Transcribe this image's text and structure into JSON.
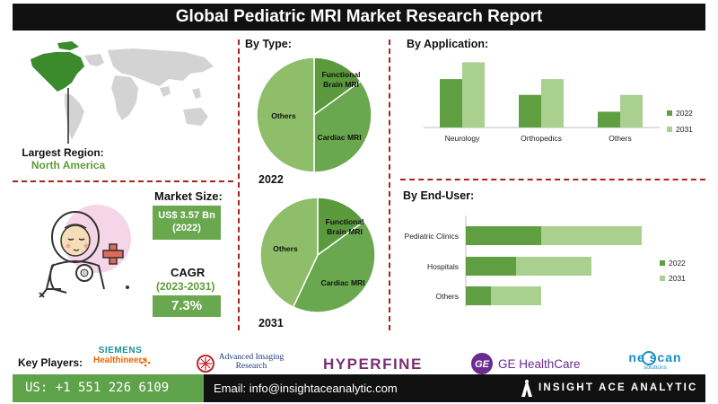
{
  "title": "Global Pediatric MRI Market Research Report",
  "region": {
    "label": "Largest Region:",
    "value": "North America"
  },
  "market_size": {
    "label": "Market Size:",
    "value": "US$ 3.57 Bn",
    "year": "(2022)"
  },
  "cagr": {
    "label": "CAGR",
    "period": "(2023-2031)",
    "value": "7.3%"
  },
  "by_type": {
    "title": "By Type:",
    "year_2022": "2022",
    "year_2031": "2031"
  },
  "by_application": {
    "title": "By Application:"
  },
  "by_end_user": {
    "title": "By End-User:"
  },
  "colors": {
    "dark_green": "#5f9f41",
    "light_green": "#a9d08e",
    "pie_light": "#8fbe6a",
    "pie_mid": "#6aa84f",
    "pie_dark": "#5b9a3c",
    "accent_red": "#a8221e"
  },
  "chart_data": [
    {
      "type": "pie",
      "title": "2022",
      "labels": [
        "Functional Brain MRI",
        "Cardiac MRI",
        "Others"
      ],
      "values": [
        15,
        35,
        50
      ]
    },
    {
      "type": "pie",
      "title": "2031",
      "labels": [
        "Functional Brain MRI",
        "Cardiac MRI",
        "Others"
      ],
      "values": [
        15,
        42,
        43
      ]
    },
    {
      "type": "bar",
      "categories": [
        "Neurology",
        "Orthopedics",
        "Others"
      ],
      "series": [
        {
          "name": "2022",
          "values": [
            46,
            31,
            15
          ]
        },
        {
          "name": "2031",
          "values": [
            62,
            46,
            31
          ]
        }
      ],
      "ylim": [
        0,
        70
      ],
      "legend": "right"
    },
    {
      "type": "bar",
      "orientation": "horizontal",
      "stacked": true,
      "categories": [
        "Pediatric Clinics",
        "Hospitals",
        "Others"
      ],
      "series": [
        {
          "name": "2022",
          "values": [
            60,
            40,
            20
          ]
        },
        {
          "name": "2031",
          "values": [
            80,
            60,
            40
          ]
        }
      ],
      "xlim": [
        0,
        150
      ],
      "legend": "right"
    }
  ],
  "key_players": {
    "label": "Key Players:",
    "siemens_top": "SIEMENS",
    "siemens_bottom": "Healthineers",
    "advanced_top": "Advanced Imaging",
    "advanced_bottom": "Research",
    "hyperfine": "HYPERFINE",
    "ge_logo": "GE",
    "ge": "GE HealthCare",
    "neoscan": "ne scan",
    "neoscan_sub": "solutions"
  },
  "footer": {
    "phone": "US: +1 551 226 6109",
    "email": "Email: info@insightaceanalytic.com",
    "brand": "INSIGHT ACE ANALYTIC"
  }
}
